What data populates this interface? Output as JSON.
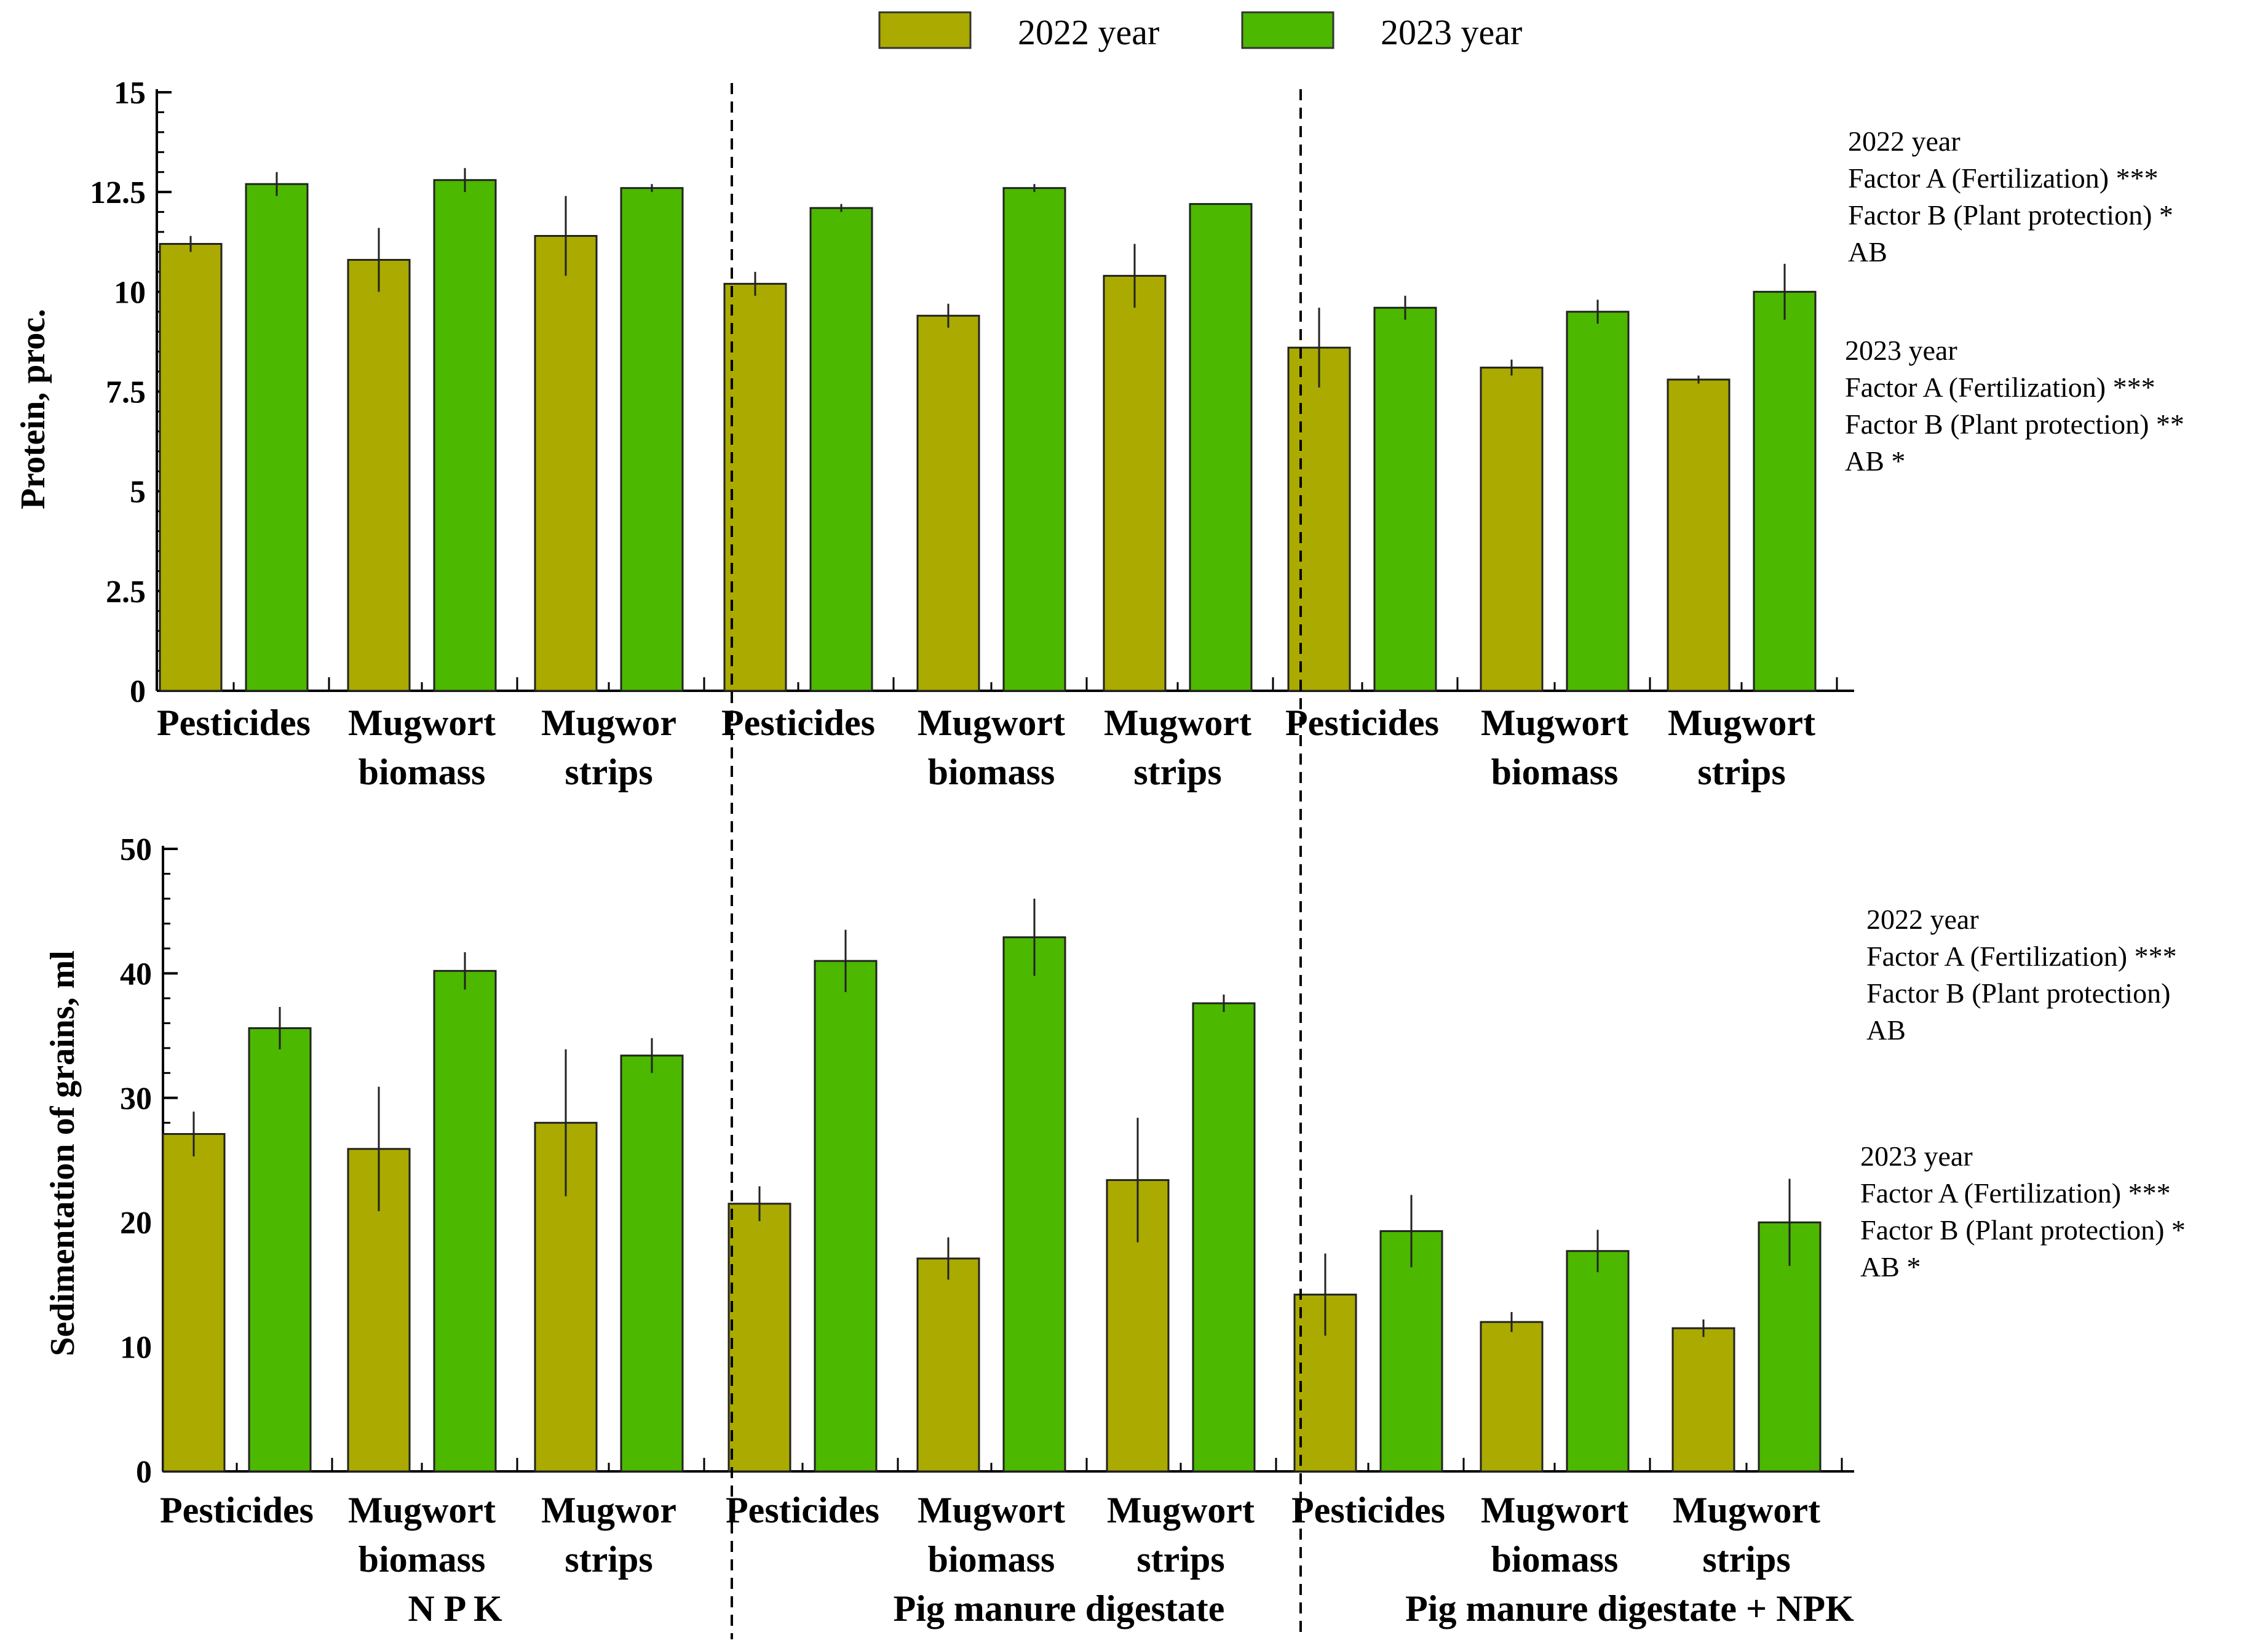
{
  "legend": {
    "items": [
      {
        "label": "2022 year",
        "color": "#aaaa00"
      },
      {
        "label": "2023 year",
        "color": "#4cb800"
      }
    ]
  },
  "groups": [
    "N P K",
    "Pig manure digestate",
    "Pig manure digestate + NPK"
  ],
  "chart_data": [
    {
      "type": "bar",
      "title": "",
      "xlabel": "",
      "ylabel": "Protein, proc.",
      "ylim": [
        0,
        15
      ],
      "yticks": [
        "0",
        "2.5",
        "5",
        "7.5",
        "10",
        "12.5",
        "15"
      ],
      "category_labels": [
        [
          "Pesticides"
        ],
        [
          "Mugwort",
          "biomass"
        ],
        [
          "Mugwor",
          "strips"
        ],
        [
          "Pesticides"
        ],
        [
          "Mugwort",
          "biomass"
        ],
        [
          "Mugwort",
          "strips"
        ],
        [
          "Pesticides"
        ],
        [
          "Mugwort",
          "biomass"
        ],
        [
          "Mugwort",
          "strips"
        ]
      ],
      "series": [
        {
          "name": "2022 year",
          "values": [
            11.2,
            10.8,
            11.4,
            10.2,
            9.4,
            10.4,
            8.6,
            8.1,
            7.8
          ],
          "errors": [
            0.2,
            0.8,
            1.0,
            0.3,
            0.3,
            0.8,
            1.0,
            0.2,
            0.1
          ]
        },
        {
          "name": "2023 year",
          "values": [
            12.7,
            12.8,
            12.6,
            12.1,
            12.6,
            12.2,
            9.6,
            9.5,
            10.0
          ],
          "errors": [
            0.3,
            0.3,
            0.1,
            0.1,
            0.1,
            0.0,
            0.3,
            0.3,
            0.7
          ]
        }
      ],
      "annotations": [
        {
          "lines": [
            "2022 year",
            "Factor A (Fertilization) ***",
            "Factor B (Plant protection) *",
            "AB"
          ]
        },
        {
          "lines": [
            "2023 year",
            "Factor A (Fertilization) ***",
            "Factor B (Plant protection) **",
            "AB *"
          ]
        }
      ]
    },
    {
      "type": "bar",
      "title": "",
      "xlabel": "",
      "ylabel": "Sedimentation of grains, ml",
      "ylim": [
        0,
        50
      ],
      "yticks": [
        "0",
        "10",
        "20",
        "30",
        "40",
        "50"
      ],
      "category_labels": [
        [
          "Pesticides"
        ],
        [
          "Mugwort",
          "biomass"
        ],
        [
          "Mugwor",
          "strips"
        ],
        [
          "Pesticides"
        ],
        [
          "Mugwort",
          "biomass"
        ],
        [
          "Mugwort",
          "strips"
        ],
        [
          "Pesticides"
        ],
        [
          "Mugwort",
          "biomass"
        ],
        [
          "Mugwort",
          "strips"
        ]
      ],
      "series": [
        {
          "name": "2022 year",
          "values": [
            27.1,
            25.9,
            28.0,
            21.5,
            17.1,
            23.4,
            14.2,
            12.0,
            11.5
          ],
          "errors": [
            1.8,
            5.0,
            5.9,
            1.4,
            1.7,
            5.0,
            3.3,
            0.8,
            0.7
          ]
        },
        {
          "name": "2023 year",
          "values": [
            35.6,
            40.2,
            33.4,
            41.0,
            42.9,
            37.6,
            19.3,
            17.7,
            20.0
          ],
          "errors": [
            1.7,
            1.5,
            1.4,
            2.5,
            3.1,
            0.7,
            2.9,
            1.7,
            3.5
          ]
        }
      ],
      "annotations": [
        {
          "lines": [
            "2022 year",
            "Factor A (Fertilization) ***",
            "Factor B (Plant protection)",
            "AB"
          ]
        },
        {
          "lines": [
            "2023 year",
            "Factor A (Fertilization) ***",
            "Factor B (Plant protection) *",
            "AB *"
          ]
        }
      ]
    }
  ]
}
